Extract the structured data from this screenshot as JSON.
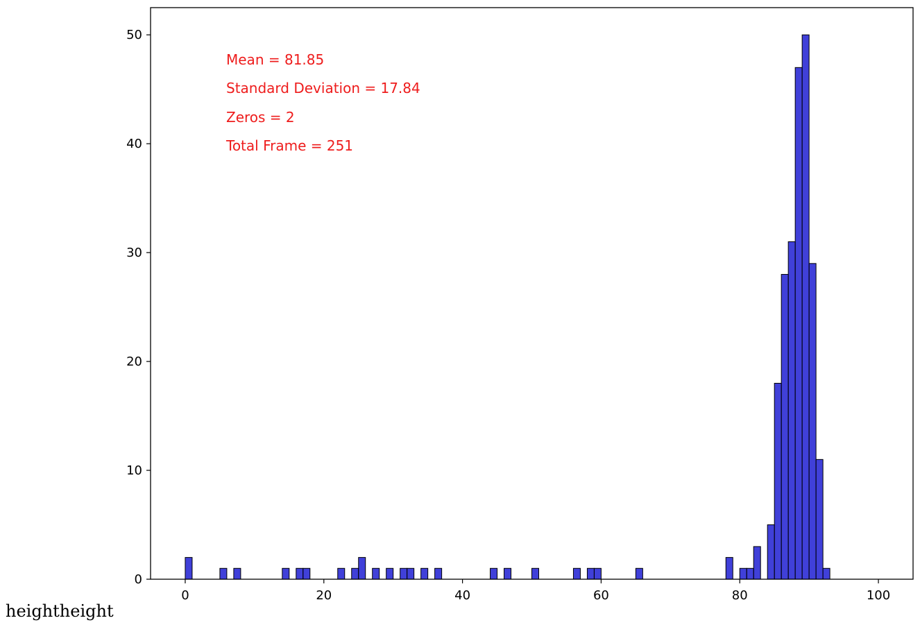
{
  "chart_data": {
    "type": "bar",
    "title": "",
    "xlabel": "",
    "ylabel": "",
    "xlim": [
      -5,
      105
    ],
    "ylim": [
      0,
      52.5
    ],
    "grid": false,
    "bin_width": 1,
    "bar_color": "#0000cc",
    "bar_edge_color": "#000000",
    "x_ticks": [
      0,
      20,
      40,
      60,
      80,
      100
    ],
    "y_ticks": [
      0,
      10,
      20,
      30,
      40,
      50
    ],
    "bins": [
      {
        "x": 0,
        "y": 2
      },
      {
        "x": 5,
        "y": 1
      },
      {
        "x": 7,
        "y": 1
      },
      {
        "x": 14,
        "y": 1
      },
      {
        "x": 16,
        "y": 1
      },
      {
        "x": 17,
        "y": 1
      },
      {
        "x": 22,
        "y": 1
      },
      {
        "x": 24,
        "y": 1
      },
      {
        "x": 25,
        "y": 2
      },
      {
        "x": 27,
        "y": 1
      },
      {
        "x": 29,
        "y": 1
      },
      {
        "x": 31,
        "y": 1
      },
      {
        "x": 32,
        "y": 1
      },
      {
        "x": 34,
        "y": 1
      },
      {
        "x": 36,
        "y": 1
      },
      {
        "x": 44,
        "y": 1
      },
      {
        "x": 46,
        "y": 1
      },
      {
        "x": 50,
        "y": 1
      },
      {
        "x": 56,
        "y": 1
      },
      {
        "x": 58,
        "y": 1
      },
      {
        "x": 59,
        "y": 1
      },
      {
        "x": 65,
        "y": 1
      },
      {
        "x": 78,
        "y": 2
      },
      {
        "x": 80,
        "y": 1
      },
      {
        "x": 81,
        "y": 1
      },
      {
        "x": 82,
        "y": 3
      },
      {
        "x": 84,
        "y": 5
      },
      {
        "x": 85,
        "y": 18
      },
      {
        "x": 86,
        "y": 28
      },
      {
        "x": 87,
        "y": 31
      },
      {
        "x": 88,
        "y": 47
      },
      {
        "x": 89,
        "y": 50
      },
      {
        "x": 90,
        "y": 29
      },
      {
        "x": 91,
        "y": 11
      },
      {
        "x": 92,
        "y": 1
      }
    ],
    "annotations": [
      "Mean = 81.85",
      "Standard Deviation = 17.84",
      "Zeros = 2",
      "Total Frame = 251"
    ],
    "annotation_color": "#ee1c1c"
  },
  "footer_text": "heightheight"
}
